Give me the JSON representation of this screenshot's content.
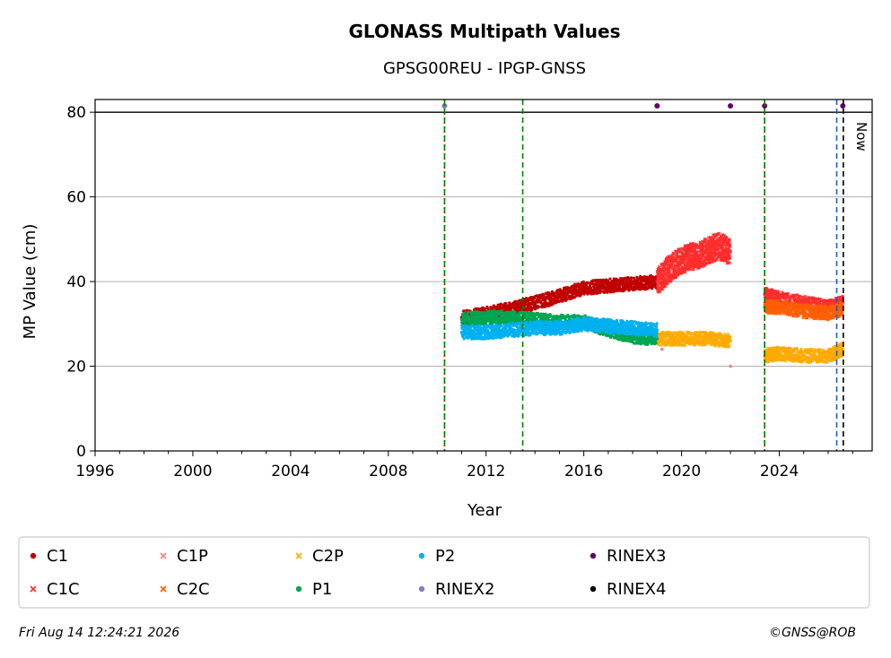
{
  "chart_data": {
    "type": "scatter",
    "title": "GLONASS Multipath Values",
    "subtitle": "GPSG00REU - IPGP-GNSS",
    "xlabel": "Year",
    "ylabel": "MP Value (cm)",
    "xlim": [
      1996,
      2027.8
    ],
    "ylim": [
      0,
      83
    ],
    "x_ticks": [
      1996,
      2000,
      2004,
      2008,
      2012,
      2016,
      2020,
      2024
    ],
    "y_ticks": [
      0,
      20,
      40,
      60,
      80
    ],
    "grid": "horizontal",
    "legend_placement": "bottom",
    "now_label": "Now",
    "footer_left": "Fri Aug 14 12:24:21 2026",
    "footer_right": "©GNSS@ROB",
    "series": [
      {
        "name": "C1",
        "marker": "dot",
        "color": "#c00000",
        "x": [
          2011.0,
          2012.0,
          2013.0,
          2014.0,
          2015.0,
          2016.0,
          2017.0,
          2018.0,
          2019.0
        ],
        "y": [
          31.5,
          32.5,
          33.5,
          35,
          36.5,
          38.5,
          39,
          39.5,
          40
        ]
      },
      {
        "name": "C1C",
        "marker": "cross",
        "color": "#ff2d2d",
        "x": [
          2019.0,
          2019.5,
          2020.0,
          2020.5,
          2021.0,
          2021.5,
          2022.0,
          2023.4,
          2024.0,
          2025.0,
          2026.0,
          2026.6
        ],
        "y": [
          40,
          43,
          45,
          46,
          47,
          48.5,
          47,
          37,
          36,
          35,
          34,
          35
        ]
      },
      {
        "name": "C1P",
        "marker": "cross",
        "color": "#f28080",
        "x": [
          2019.2,
          2022.0
        ],
        "y": [
          24,
          20
        ]
      },
      {
        "name": "C2C",
        "marker": "cross",
        "color": "#ff5f00",
        "x": [
          2023.4,
          2024.0,
          2025.0,
          2026.0,
          2026.6
        ],
        "y": [
          34,
          34,
          33,
          32.5,
          33.5
        ]
      },
      {
        "name": "C2P",
        "marker": "cross",
        "color": "#ffaa00",
        "x": [
          2019.0,
          2020.0,
          2021.0,
          2022.0,
          2023.4,
          2024.0,
          2025.0,
          2026.0,
          2026.6
        ],
        "y": [
          26.5,
          26.5,
          26.5,
          26,
          22.5,
          23,
          22.5,
          22.5,
          24
        ]
      },
      {
        "name": "P1",
        "marker": "dot",
        "color": "#00a651",
        "x": [
          2011.0,
          2012.0,
          2013.0,
          2014.0,
          2015.0,
          2016.0,
          2017.0,
          2018.0,
          2019.0
        ],
        "y": [
          31,
          31.5,
          31.5,
          31,
          30.5,
          30.5,
          28.5,
          27,
          26.5
        ]
      },
      {
        "name": "P2",
        "marker": "dot",
        "color": "#00b0f0",
        "x": [
          2011.0,
          2012.0,
          2013.0,
          2014.0,
          2015.0,
          2016.0,
          2017.0,
          2018.0,
          2019.0
        ],
        "y": [
          28,
          28,
          28.5,
          29,
          29,
          30,
          29.5,
          29,
          28.5
        ]
      },
      {
        "name": "RINEX2",
        "marker": "dot",
        "color": "#8080c0",
        "x": [
          2010.3,
          2019.0
        ],
        "y": [
          81.5,
          81.5
        ]
      },
      {
        "name": "RINEX3",
        "marker": "dot",
        "color": "#660066",
        "x": [
          2019.0,
          2022.0,
          2023.4,
          2026.6
        ],
        "y": [
          81.5,
          81.5,
          81.5,
          81.5
        ]
      },
      {
        "name": "RINEX4",
        "marker": "dot",
        "color": "#000000",
        "x": [],
        "y": []
      }
    ],
    "vertical_lines": [
      {
        "x": 2010.3,
        "color": "#c00000",
        "style": "dotted"
      },
      {
        "x": 2010.3,
        "color": "#008000",
        "style": "dashed"
      },
      {
        "x": 2013.5,
        "color": "#008000",
        "style": "dashed"
      },
      {
        "x": 2023.4,
        "color": "#c00000",
        "style": "dotted"
      },
      {
        "x": 2023.4,
        "color": "#008000",
        "style": "dashed"
      },
      {
        "x": 2026.35,
        "color": "#1f5fbf",
        "style": "dashed"
      },
      {
        "x": 2026.62,
        "color": "#000000",
        "style": "dashed"
      }
    ],
    "reference_line": {
      "y": 80,
      "color": "#000000"
    }
  }
}
